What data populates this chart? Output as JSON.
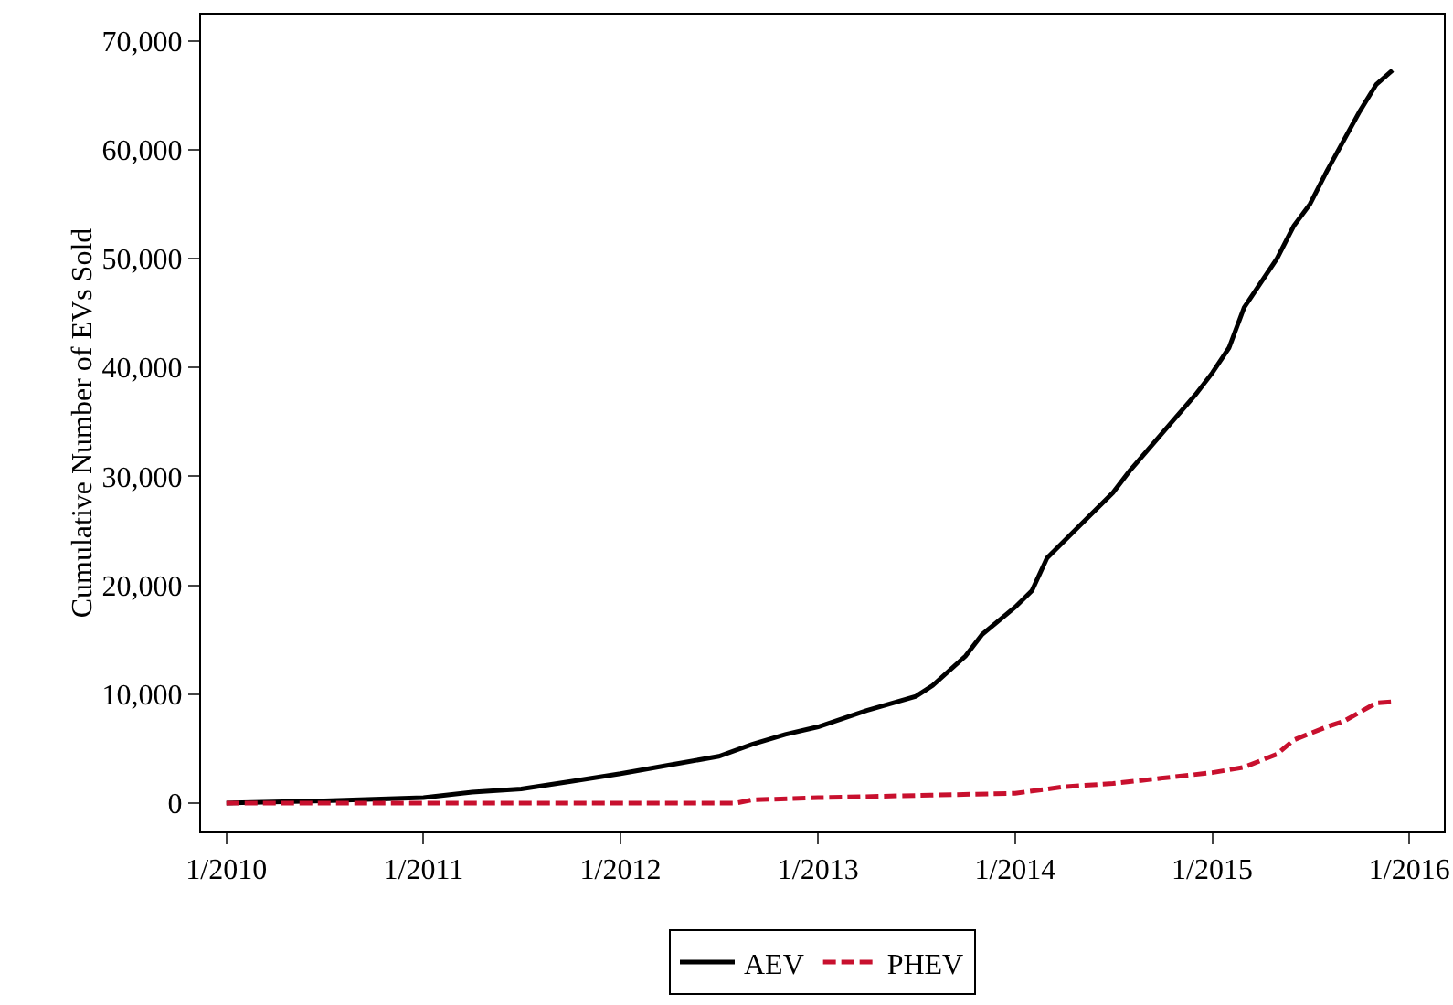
{
  "chart_data": {
    "type": "line",
    "ylabel": "Cumulative Number of EVs Sold",
    "xlim": [
      "2009-11-15",
      "2016-03-05"
    ],
    "xticks": [
      {
        "value": "2010-01",
        "label": "1/2010"
      },
      {
        "value": "2011-01",
        "label": "1/2011"
      },
      {
        "value": "2012-01",
        "label": "1/2012"
      },
      {
        "value": "2013-01",
        "label": "1/2013"
      },
      {
        "value": "2014-01",
        "label": "1/2014"
      },
      {
        "value": "2015-01",
        "label": "1/2015"
      },
      {
        "value": "2016-01",
        "label": "1/2016"
      }
    ],
    "ylim": [
      -2600,
      72400
    ],
    "yticks": [
      {
        "value": 0,
        "label": "0"
      },
      {
        "value": 10000,
        "label": "10,000"
      },
      {
        "value": 20000,
        "label": "20,000"
      },
      {
        "value": 30000,
        "label": "30,000"
      },
      {
        "value": 40000,
        "label": "40,000"
      },
      {
        "value": 50000,
        "label": "50,000"
      },
      {
        "value": 60000,
        "label": "60,000"
      },
      {
        "value": 70000,
        "label": "70,000"
      }
    ],
    "grid": false,
    "legend": "bottom",
    "series": [
      {
        "name": "AEV",
        "color": "#000000",
        "line_style": "solid",
        "x": [
          "2010-01",
          "2010-07",
          "2011-01",
          "2011-04",
          "2011-07",
          "2011-10",
          "2012-01",
          "2012-04",
          "2012-07",
          "2012-09",
          "2012-11",
          "2013-01",
          "2013-04",
          "2013-07",
          "2013-08",
          "2013-10",
          "2013-11",
          "2014-01",
          "2014-02",
          "2014-03",
          "2014-05",
          "2014-07",
          "2014-08",
          "2014-10",
          "2014-12",
          "2015-01",
          "2015-02",
          "2015-03",
          "2015-05",
          "2015-06",
          "2015-07",
          "2015-08",
          "2015-10",
          "2015-11",
          "2015-12"
        ],
        "values": [
          0,
          200,
          500,
          1000,
          1300,
          2000,
          2700,
          3500,
          4300,
          5400,
          6300,
          7000,
          8500,
          9800,
          10800,
          13500,
          15500,
          18000,
          19500,
          22500,
          25500,
          28500,
          30500,
          34000,
          37500,
          39500,
          41800,
          45500,
          50000,
          53000,
          55000,
          58000,
          63500,
          66000,
          67300
        ]
      },
      {
        "name": "PHEV",
        "color": "#c8102e",
        "line_style": "dashed",
        "x": [
          "2010-01",
          "2012-08",
          "2012-09",
          "2013-01",
          "2013-07",
          "2014-01",
          "2014-04",
          "2014-07",
          "2015-01",
          "2015-03",
          "2015-05",
          "2015-06",
          "2015-08",
          "2015-09",
          "2015-11",
          "2015-12"
        ],
        "values": [
          0,
          0,
          300,
          500,
          700,
          900,
          1500,
          1800,
          2800,
          3300,
          4500,
          5800,
          7000,
          7500,
          9200,
          9300
        ]
      }
    ]
  }
}
